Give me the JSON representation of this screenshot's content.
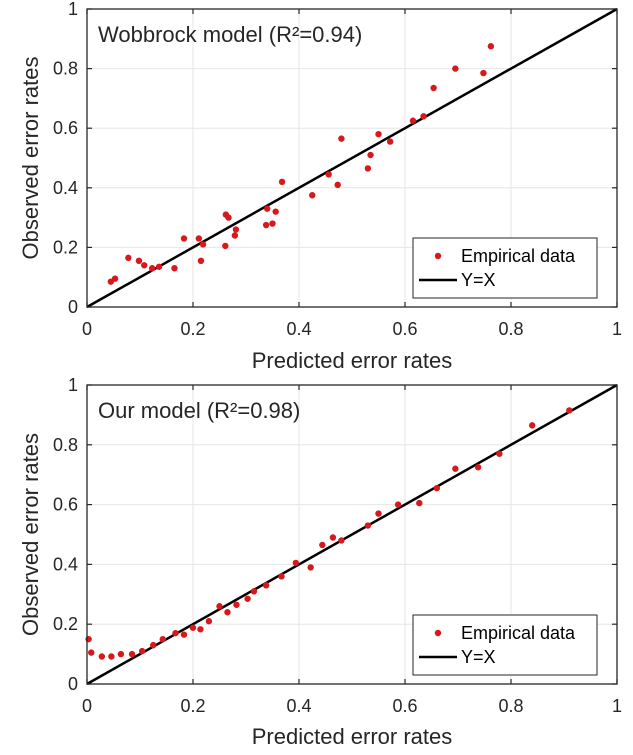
{
  "colors": {
    "marker": "#d7191c",
    "line": "#000000",
    "grid": "#e6e6e6",
    "axes": "#262626"
  },
  "chart_data": [
    {
      "type": "scatter",
      "title": "Wobbrock model (R²=0.94)",
      "xlabel": "Predicted error rates",
      "ylabel": "Observed error rates",
      "xlim": [
        0,
        1
      ],
      "ylim": [
        0,
        1
      ],
      "xticks": [
        "0",
        "0.2",
        "0.4",
        "0.6",
        "0.8",
        "1"
      ],
      "yticks": [
        "0",
        "0.2",
        "0.4",
        "0.6",
        "0.8",
        "1"
      ],
      "grid": true,
      "legend_position": "bottom-right",
      "legend": [
        "Empirical data",
        "Y=X"
      ],
      "reference_line": {
        "label": "Y=X",
        "points": [
          [
            0,
            0
          ],
          [
            1,
            1
          ]
        ]
      },
      "points": [
        [
          0.045,
          0.085
        ],
        [
          0.053,
          0.095
        ],
        [
          0.078,
          0.165
        ],
        [
          0.098,
          0.155
        ],
        [
          0.108,
          0.14
        ],
        [
          0.123,
          0.13
        ],
        [
          0.136,
          0.135
        ],
        [
          0.165,
          0.13
        ],
        [
          0.183,
          0.23
        ],
        [
          0.211,
          0.23
        ],
        [
          0.215,
          0.155
        ],
        [
          0.219,
          0.21
        ],
        [
          0.261,
          0.205
        ],
        [
          0.262,
          0.31
        ],
        [
          0.267,
          0.3
        ],
        [
          0.279,
          0.24
        ],
        [
          0.281,
          0.26
        ],
        [
          0.338,
          0.275
        ],
        [
          0.34,
          0.33
        ],
        [
          0.35,
          0.28
        ],
        [
          0.356,
          0.32
        ],
        [
          0.368,
          0.42
        ],
        [
          0.425,
          0.375
        ],
        [
          0.456,
          0.445
        ],
        [
          0.473,
          0.41
        ],
        [
          0.48,
          0.565
        ],
        [
          0.53,
          0.465
        ],
        [
          0.535,
          0.51
        ],
        [
          0.55,
          0.58
        ],
        [
          0.572,
          0.555
        ],
        [
          0.615,
          0.625
        ],
        [
          0.635,
          0.64
        ],
        [
          0.654,
          0.735
        ],
        [
          0.695,
          0.8
        ],
        [
          0.748,
          0.785
        ],
        [
          0.762,
          0.875
        ]
      ]
    },
    {
      "type": "scatter",
      "title": "Our model (R²=0.98)",
      "xlabel": "Predicted error rates",
      "ylabel": "Observed error rates",
      "xlim": [
        0,
        1
      ],
      "ylim": [
        0,
        1
      ],
      "xticks": [
        "0",
        "0.2",
        "0.4",
        "0.6",
        "0.8",
        "1"
      ],
      "yticks": [
        "0",
        "0.2",
        "0.4",
        "0.6",
        "0.8",
        "1"
      ],
      "grid": true,
      "legend_position": "bottom-right",
      "legend": [
        "Empirical data",
        "Y=X"
      ],
      "reference_line": {
        "label": "Y=X",
        "points": [
          [
            0,
            0
          ],
          [
            1,
            1
          ]
        ]
      },
      "points": [
        [
          0.003,
          0.15
        ],
        [
          0.008,
          0.105
        ],
        [
          0.028,
          0.092
        ],
        [
          0.046,
          0.092
        ],
        [
          0.064,
          0.1
        ],
        [
          0.085,
          0.1
        ],
        [
          0.104,
          0.11
        ],
        [
          0.125,
          0.13
        ],
        [
          0.143,
          0.15
        ],
        [
          0.167,
          0.17
        ],
        [
          0.183,
          0.165
        ],
        [
          0.2,
          0.188
        ],
        [
          0.214,
          0.183
        ],
        [
          0.23,
          0.21
        ],
        [
          0.25,
          0.26
        ],
        [
          0.265,
          0.24
        ],
        [
          0.282,
          0.265
        ],
        [
          0.303,
          0.285
        ],
        [
          0.315,
          0.31
        ],
        [
          0.338,
          0.33
        ],
        [
          0.367,
          0.36
        ],
        [
          0.394,
          0.405
        ],
        [
          0.422,
          0.39
        ],
        [
          0.444,
          0.465
        ],
        [
          0.464,
          0.49
        ],
        [
          0.48,
          0.48
        ],
        [
          0.53,
          0.53
        ],
        [
          0.55,
          0.57
        ],
        [
          0.587,
          0.6
        ],
        [
          0.627,
          0.605
        ],
        [
          0.66,
          0.655
        ],
        [
          0.695,
          0.72
        ],
        [
          0.738,
          0.725
        ],
        [
          0.778,
          0.77
        ],
        [
          0.84,
          0.865
        ],
        [
          0.91,
          0.915
        ]
      ]
    }
  ]
}
